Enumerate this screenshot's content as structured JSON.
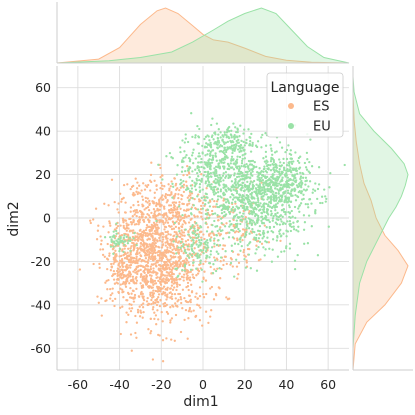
{
  "chart_data": {
    "type": "scatter",
    "subtype": "jointplot-with-kde-marginals",
    "xlabel": "dim1",
    "ylabel": "dim2",
    "xlim": [
      -70,
      70
    ],
    "ylim": [
      -70,
      70
    ],
    "xticks": [
      -60,
      -40,
      -20,
      0,
      20,
      40,
      60
    ],
    "yticks": [
      -60,
      -40,
      -20,
      0,
      20,
      40,
      60
    ],
    "grid": true,
    "legend": {
      "title": "Language",
      "placement": "top-right"
    },
    "series": [
      {
        "name": "ES",
        "color": "#fcb98c",
        "fill": "#fde2cf",
        "clusters": [
          {
            "cx": -20,
            "cy": -22,
            "sx": 12,
            "sy": 13,
            "n": 1050
          },
          {
            "cx": -30,
            "cy": -10,
            "sx": 8,
            "sy": 10,
            "n": 300
          },
          {
            "cx": -38,
            "cy": -25,
            "sx": 5,
            "sy": 7,
            "n": 120
          },
          {
            "cx": -10,
            "cy": 3,
            "sx": 8,
            "sy": 7,
            "n": 150
          },
          {
            "cx": 15,
            "cy": -8,
            "sx": 9,
            "sy": 10,
            "n": 130
          },
          {
            "cx": -20,
            "cy": 10,
            "sx": 10,
            "sy": 6,
            "n": 100
          }
        ],
        "x_density": [
          [
            -70,
            0.0
          ],
          [
            -50,
            0.07
          ],
          [
            -40,
            0.28
          ],
          [
            -30,
            0.7
          ],
          [
            -22,
            0.95
          ],
          [
            -18,
            1.0
          ],
          [
            -12,
            0.9
          ],
          [
            -5,
            0.68
          ],
          [
            0,
            0.52
          ],
          [
            5,
            0.42
          ],
          [
            12,
            0.38
          ],
          [
            20,
            0.27
          ],
          [
            30,
            0.12
          ],
          [
            40,
            0.05
          ],
          [
            52,
            0.015
          ],
          [
            70,
            0.0
          ]
        ],
        "y_density": [
          [
            -70,
            0.0
          ],
          [
            -58,
            0.04
          ],
          [
            -48,
            0.25
          ],
          [
            -40,
            0.58
          ],
          [
            -30,
            0.88
          ],
          [
            -22,
            1.0
          ],
          [
            -15,
            0.82
          ],
          [
            -8,
            0.58
          ],
          [
            0,
            0.42
          ],
          [
            8,
            0.33
          ],
          [
            16,
            0.2
          ],
          [
            25,
            0.12
          ],
          [
            35,
            0.06
          ],
          [
            45,
            0.02
          ],
          [
            58,
            0.0
          ]
        ]
      },
      {
        "name": "EU",
        "color": "#9ae2a7",
        "fill": "#d6f6dc",
        "clusters": [
          {
            "cx": 25,
            "cy": 10,
            "sx": 13,
            "sy": 12,
            "n": 1000
          },
          {
            "cx": 5,
            "cy": 23,
            "sx": 9,
            "sy": 8,
            "n": 280
          },
          {
            "cx": 38,
            "cy": 15,
            "sx": 6,
            "sy": 6,
            "n": 200
          },
          {
            "cx": 12,
            "cy": 35,
            "sx": 6,
            "sy": 4,
            "n": 120
          },
          {
            "cx": -2,
            "cy": -14,
            "sx": 6,
            "sy": 6,
            "n": 120
          },
          {
            "cx": -40,
            "cy": -10,
            "sx": 3,
            "sy": 3,
            "n": 50
          }
        ],
        "x_density": [
          [
            -70,
            0.0
          ],
          [
            -45,
            0.04
          ],
          [
            -30,
            0.1
          ],
          [
            -15,
            0.2
          ],
          [
            -5,
            0.38
          ],
          [
            5,
            0.6
          ],
          [
            12,
            0.76
          ],
          [
            20,
            0.9
          ],
          [
            28,
            1.0
          ],
          [
            35,
            0.9
          ],
          [
            42,
            0.62
          ],
          [
            50,
            0.3
          ],
          [
            58,
            0.1
          ],
          [
            70,
            0.0
          ]
        ],
        "y_density": [
          [
            -60,
            0.0
          ],
          [
            -45,
            0.04
          ],
          [
            -30,
            0.12
          ],
          [
            -20,
            0.25
          ],
          [
            -10,
            0.45
          ],
          [
            0,
            0.65
          ],
          [
            5,
            0.78
          ],
          [
            10,
            0.88
          ],
          [
            15,
            0.95
          ],
          [
            20,
            1.0
          ],
          [
            25,
            0.93
          ],
          [
            32,
            0.7
          ],
          [
            40,
            0.38
          ],
          [
            48,
            0.12
          ],
          [
            58,
            0.02
          ],
          [
            65,
            0.0
          ]
        ]
      }
    ]
  }
}
